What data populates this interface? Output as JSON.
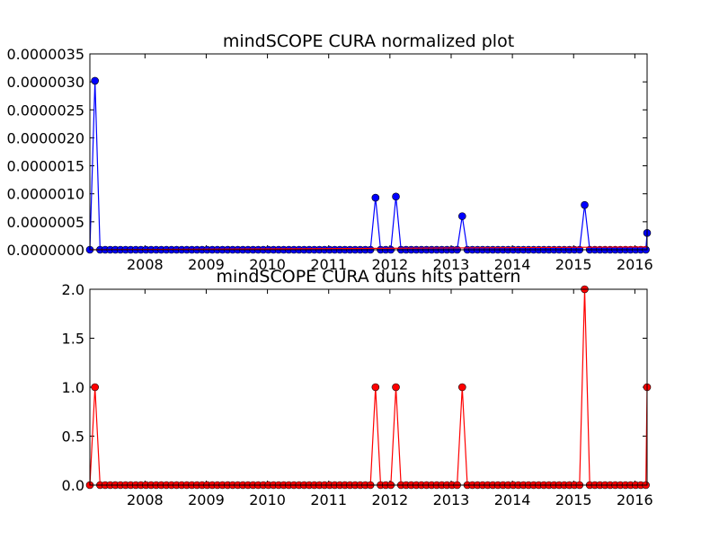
{
  "chart_data": [
    {
      "type": "line",
      "title": "mindSCOPE CURA normalized plot",
      "xlabel": "",
      "ylabel": "",
      "xlim": [
        2007.1,
        2016.2
      ],
      "ylim": [
        0,
        3.5e-06
      ],
      "x_ticks": [
        2008,
        2009,
        2010,
        2011,
        2012,
        2013,
        2014,
        2015,
        2016
      ],
      "y_ticks": [
        "0.0000000",
        "0.0000005",
        "0.0000010",
        "0.0000015",
        "0.0000020",
        "0.0000025",
        "0.0000030",
        "0.0000035"
      ],
      "grid": false,
      "series": [
        {
          "color": "#0000ff",
          "marker": "circle",
          "x_start": 2007.1,
          "x_step": 0.0833,
          "x_end": 2016.2,
          "values_nonzero": [
            {
              "x": 2007.18,
              "y": 3.02e-06
            },
            {
              "x": 2011.75,
              "y": 9.3e-07
            },
            {
              "x": 2012.08,
              "y": 9.5e-07
            },
            {
              "x": 2013.17,
              "y": 6e-07
            },
            {
              "x": 2015.17,
              "y": 8e-07
            },
            {
              "x": 2016.2,
              "y": 3e-07
            }
          ]
        },
        {
          "color": "#ff0000",
          "marker": "triangle",
          "trend": [
            [
              2007.1,
              0.0
            ],
            [
              2016.2,
              5e-08
            ]
          ]
        }
      ]
    },
    {
      "type": "line",
      "title": "mindSCOPE CURA duns hits pattern",
      "xlabel": "",
      "ylabel": "",
      "xlim": [
        2007.1,
        2016.2
      ],
      "ylim": [
        0,
        2.0
      ],
      "x_ticks": [
        2008,
        2009,
        2010,
        2011,
        2012,
        2013,
        2014,
        2015,
        2016
      ],
      "y_ticks": [
        "0.0",
        "0.5",
        "1.0",
        "1.5",
        "2.0"
      ],
      "grid": false,
      "series": [
        {
          "color": "#ff0000",
          "marker": "circle",
          "x_start": 2007.1,
          "x_step": 0.0833,
          "x_end": 2016.2,
          "values_nonzero": [
            {
              "x": 2007.18,
              "y": 1
            },
            {
              "x": 2011.75,
              "y": 1
            },
            {
              "x": 2012.08,
              "y": 1
            },
            {
              "x": 2013.17,
              "y": 1
            },
            {
              "x": 2015.17,
              "y": 2
            },
            {
              "x": 2016.2,
              "y": 1
            }
          ]
        }
      ]
    }
  ]
}
